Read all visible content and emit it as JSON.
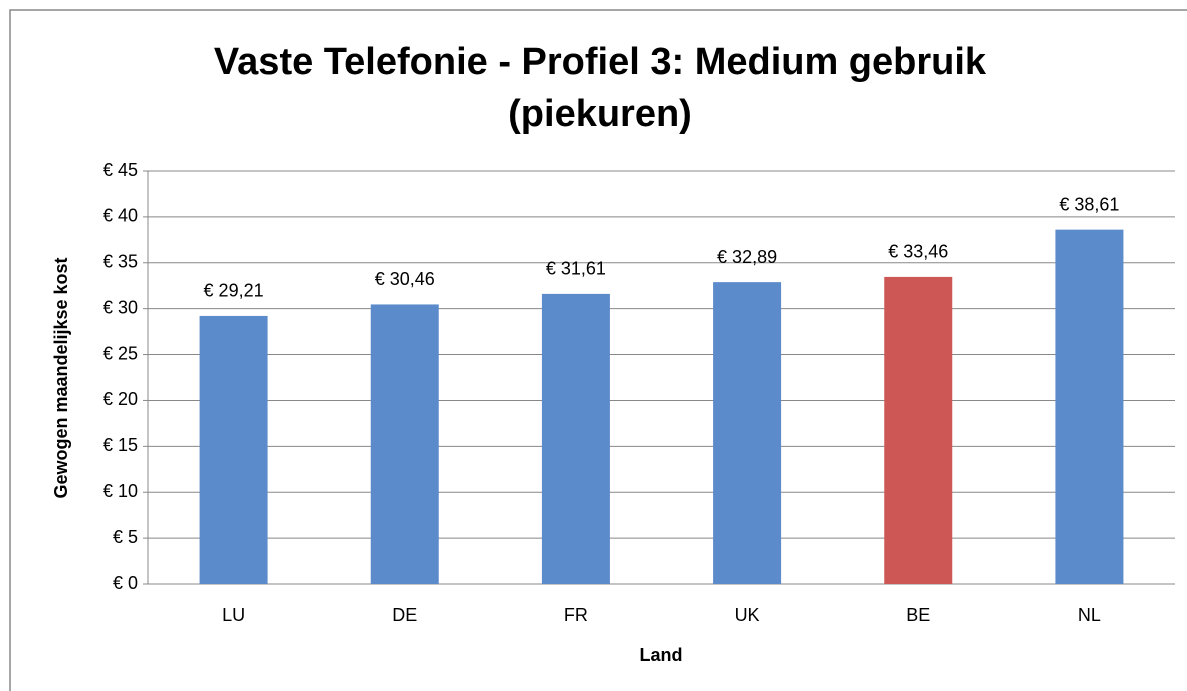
{
  "chart_data": {
    "type": "bar",
    "title": "Vaste Telefonie - Profiel 3: Medium gebruik (piekuren)",
    "categories": [
      "LU",
      "DE",
      "FR",
      "UK",
      "BE",
      "NL"
    ],
    "values": [
      29.21,
      30.46,
      31.61,
      32.89,
      33.46,
      38.61
    ],
    "value_labels": [
      "€ 29,21",
      "€ 30,46",
      "€ 31,61",
      "€ 32,89",
      "€ 33,46",
      "€ 38,61"
    ],
    "colors": [
      "#5b8bcb",
      "#5b8bcb",
      "#5b8bcb",
      "#5b8bcb",
      "#cd5754",
      "#5b8bcb"
    ],
    "ylabel": "Gewogen maandelijkse kost",
    "xlabel": "Land",
    "ylim": [
      0,
      45
    ],
    "yticks": [
      {
        "value": 0,
        "label": "€ 0"
      },
      {
        "value": 5,
        "label": "€ 5"
      },
      {
        "value": 10,
        "label": "€ 10"
      },
      {
        "value": 15,
        "label": "€ 15"
      },
      {
        "value": 20,
        "label": "€ 20"
      },
      {
        "value": 25,
        "label": "€ 25"
      },
      {
        "value": 30,
        "label": "€ 30"
      },
      {
        "value": 35,
        "label": "€ 35"
      },
      {
        "value": 40,
        "label": "€ 40"
      },
      {
        "value": 45,
        "label": "€ 45"
      }
    ],
    "grid": true
  }
}
